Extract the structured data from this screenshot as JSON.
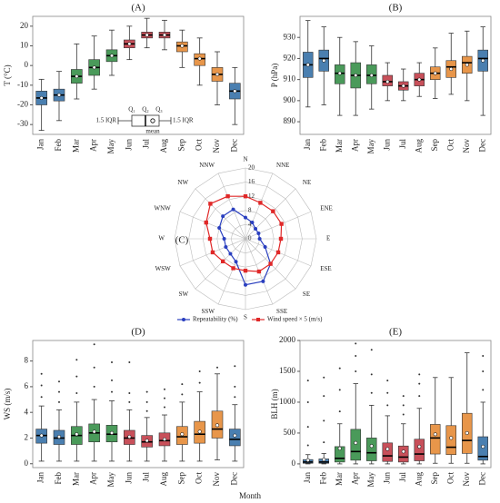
{
  "chart_data": [
    {
      "type": "box",
      "title": "(A)",
      "ylabel": "T (°C)",
      "categories": [
        "Jan",
        "Feb",
        "Mar",
        "Apr",
        "May",
        "Jun",
        "Jul",
        "Aug",
        "Sep",
        "Oct",
        "Nov",
        "Dec"
      ],
      "colors": [
        "#4a7fb0",
        "#4a7fb0",
        "#4a9a5a",
        "#4a9a5a",
        "#4a9a5a",
        "#c8505a",
        "#c8505a",
        "#c8505a",
        "#e8964a",
        "#e8964a",
        "#e8964a",
        "#4a7fb0"
      ],
      "ylim": [
        -35,
        25
      ],
      "yticks": [
        -30,
        -20,
        -10,
        0,
        10,
        20
      ],
      "boxes": [
        {
          "whislo": -33,
          "q1": -20,
          "med": -16.5,
          "q3": -13,
          "whishi": -7,
          "mean": -16.5
        },
        {
          "whislo": -28,
          "q1": -18,
          "med": -15,
          "q3": -12,
          "whishi": -3,
          "mean": -15
        },
        {
          "whislo": -17,
          "q1": -9,
          "med": -5.5,
          "q3": -2,
          "whishi": 11,
          "mean": -5.5
        },
        {
          "whislo": -12,
          "q1": -5,
          "med": -1,
          "q3": 3,
          "whishi": 15,
          "mean": -1
        },
        {
          "whislo": -5,
          "q1": 2,
          "med": 5,
          "q3": 8,
          "whishi": 18,
          "mean": 5
        },
        {
          "whislo": 3,
          "q1": 9,
          "med": 11,
          "q3": 13,
          "whishi": 20,
          "mean": 11
        },
        {
          "whislo": 9,
          "q1": 14,
          "med": 15.5,
          "q3": 17,
          "whishi": 24,
          "mean": 15.5
        },
        {
          "whislo": 8,
          "q1": 14,
          "med": 15.5,
          "q3": 17,
          "whishi": 23,
          "mean": 15.5
        },
        {
          "whislo": -1,
          "q1": 7,
          "med": 10,
          "q3": 12,
          "whishi": 18,
          "mean": 10
        },
        {
          "whislo": -10,
          "q1": 0,
          "med": 3.5,
          "q3": 6,
          "whishi": 14,
          "mean": 3.5
        },
        {
          "whislo": -20,
          "q1": -8,
          "med": -4.5,
          "q3": -1,
          "whishi": 7,
          "mean": -4.5
        },
        {
          "whislo": -30,
          "q1": -17,
          "med": -13,
          "q3": -9,
          "whishi": -1,
          "mean": -13
        }
      ],
      "legend_labels": {
        "q1": "Q₁",
        "q2": "Q₂",
        "q3": "Q₃",
        "iqr_low": "1.5 IQR",
        "iqr_high": "1.5 IQR",
        "mean": "mean"
      }
    },
    {
      "type": "box",
      "title": "(B)",
      "ylabel": "P (hPa)",
      "categories": [
        "Jan",
        "Feb",
        "Mar",
        "Apr",
        "May",
        "Jun",
        "Jul",
        "Aug",
        "Sep",
        "Oct",
        "Nov",
        "Dec"
      ],
      "colors": [
        "#4a7fb0",
        "#4a7fb0",
        "#4a9a5a",
        "#4a9a5a",
        "#4a9a5a",
        "#c8505a",
        "#c8505a",
        "#c8505a",
        "#e8964a",
        "#e8964a",
        "#e8964a",
        "#4a7fb0"
      ],
      "ylim": [
        884,
        940
      ],
      "yticks": [
        890,
        900,
        910,
        920,
        930
      ],
      "boxes": [
        {
          "whislo": 897,
          "q1": 911,
          "med": 917,
          "q3": 923,
          "whishi": 938,
          "mean": 917
        },
        {
          "whislo": 898,
          "q1": 914,
          "med": 920,
          "q3": 924,
          "whishi": 935,
          "mean": 919
        },
        {
          "whislo": 893,
          "q1": 908,
          "med": 913,
          "q3": 917,
          "whishi": 930,
          "mean": 913
        },
        {
          "whislo": 893,
          "q1": 906,
          "med": 912,
          "q3": 918,
          "whishi": 928,
          "mean": 912
        },
        {
          "whislo": 896,
          "q1": 908,
          "med": 912,
          "q3": 917,
          "whishi": 926,
          "mean": 912
        },
        {
          "whislo": 900,
          "q1": 907,
          "med": 909,
          "q3": 912,
          "whishi": 918,
          "mean": 909
        },
        {
          "whislo": 900,
          "q1": 905,
          "med": 907,
          "q3": 909,
          "whishi": 915,
          "mean": 907
        },
        {
          "whislo": 902,
          "q1": 907,
          "med": 910,
          "q3": 913,
          "whishi": 918,
          "mean": 910
        },
        {
          "whislo": 901,
          "q1": 910,
          "med": 913,
          "q3": 916,
          "whishi": 925,
          "mean": 913
        },
        {
          "whislo": 903,
          "q1": 911,
          "med": 916,
          "q3": 919,
          "whishi": 932,
          "mean": 915
        },
        {
          "whislo": 900,
          "q1": 913,
          "med": 918,
          "q3": 921,
          "whishi": 933,
          "mean": 917
        },
        {
          "whislo": 893,
          "q1": 914,
          "med": 920,
          "q3": 924,
          "whishi": 935,
          "mean": 919
        }
      ]
    },
    {
      "type": "radar",
      "title": "(C)",
      "categories": [
        "N",
        "NNE",
        "NE",
        "ENE",
        "E",
        "ESE",
        "SE",
        "SSE",
        "S",
        "SSW",
        "SW",
        "WSW",
        "W",
        "WNW",
        "NW",
        "NNW"
      ],
      "rlim": [
        0,
        20
      ],
      "rticks": [
        0,
        4,
        8,
        12,
        16,
        20
      ],
      "series": [
        {
          "name": "Repeatability (%)",
          "color": "#2a3fbf",
          "values": [
            6,
            5,
            4,
            4,
            4,
            6,
            10,
            13,
            13,
            7,
            6,
            6,
            6,
            8,
            9,
            9
          ]
        },
        {
          "name": "Wind speed × 5 (m/s)",
          "color": "#e02828",
          "values": [
            12,
            11,
            11,
            11,
            10,
            10,
            10,
            10,
            9,
            9,
            9,
            10,
            10,
            12,
            14,
            13
          ]
        }
      ]
    },
    {
      "type": "box",
      "title": "(D)",
      "ylabel": "WS (m/s)",
      "categories": [
        "Jan",
        "Feb",
        "Mar",
        "Apr",
        "May",
        "Jun",
        "Jul",
        "Aug",
        "Sep",
        "Oct",
        "Nov",
        "Dec"
      ],
      "colors": [
        "#4a7fb0",
        "#4a7fb0",
        "#4a9a5a",
        "#4a9a5a",
        "#4a9a5a",
        "#c8505a",
        "#c8505a",
        "#c8505a",
        "#e8964a",
        "#e8964a",
        "#e8964a",
        "#4a7fb0"
      ],
      "ylim": [
        -0.3,
        9.6
      ],
      "yticks": [
        0,
        2,
        4,
        6,
        8
      ],
      "boxes": [
        {
          "whislo": 0.2,
          "q1": 1.6,
          "med": 2.2,
          "q3": 2.7,
          "whishi": 4.5,
          "mean": 2.2,
          "outliers": [
            5.2,
            6.1,
            7
          ]
        },
        {
          "whislo": 0.2,
          "q1": 1.5,
          "med": 2,
          "q3": 2.6,
          "whishi": 4.2,
          "mean": 2.1,
          "outliers": [
            4.8,
            5.6,
            6.4
          ]
        },
        {
          "whislo": 0.2,
          "q1": 1.5,
          "med": 2.2,
          "q3": 2.9,
          "whishi": 4.8,
          "mean": 2.3,
          "outliers": [
            5.5,
            6.8,
            8.1
          ]
        },
        {
          "whislo": 0.2,
          "q1": 1.7,
          "med": 2.4,
          "q3": 3.1,
          "whishi": 5,
          "mean": 2.5,
          "outliers": [
            6,
            7.5,
            9.3
          ]
        },
        {
          "whislo": 0.2,
          "q1": 1.7,
          "med": 2.3,
          "q3": 3,
          "whishi": 4.9,
          "mean": 2.4,
          "outliers": [
            5.6,
            6.5,
            7.9
          ]
        },
        {
          "whislo": 0.2,
          "q1": 1.5,
          "med": 2,
          "q3": 2.6,
          "whishi": 4.2,
          "mean": 2.1,
          "outliers": [
            4.8,
            5.5,
            7.9
          ]
        },
        {
          "whislo": 0.2,
          "q1": 1.3,
          "med": 1.7,
          "q3": 2.2,
          "whishi": 3.6,
          "mean": 1.8,
          "outliers": [
            4.1,
            4.8,
            5.6
          ]
        },
        {
          "whislo": 0.2,
          "q1": 1.4,
          "med": 1.8,
          "q3": 2.4,
          "whishi": 3.8,
          "mean": 1.9,
          "outliers": [
            4.4,
            5.1,
            5.8
          ]
        },
        {
          "whislo": 0.2,
          "q1": 1.5,
          "med": 2.1,
          "q3": 2.9,
          "whishi": 4.8,
          "mean": 2.3,
          "outliers": [
            5.4,
            6.2
          ]
        },
        {
          "whislo": 0.2,
          "q1": 1.6,
          "med": 2.3,
          "q3": 3.3,
          "whishi": 5.6,
          "mean": 2.5,
          "outliers": [
            6.3,
            7.2
          ]
        },
        {
          "whislo": 0.3,
          "q1": 2,
          "med": 2.7,
          "q3": 4.1,
          "whishi": 7,
          "mean": 3,
          "outliers": [
            7.5
          ]
        },
        {
          "whislo": 0.2,
          "q1": 1.4,
          "med": 1.9,
          "q3": 2.7,
          "whishi": 4.6,
          "mean": 2.2,
          "outliers": [
            5.2,
            6,
            7.6
          ]
        }
      ]
    },
    {
      "type": "box",
      "title": "(E)",
      "ylabel": "BLH (m)",
      "categories": [
        "Jan",
        "Feb",
        "Mar",
        "Apr",
        "May",
        "Jun",
        "Jul",
        "Aug",
        "Sep",
        "Oct",
        "Nov",
        "Dec"
      ],
      "colors": [
        "#4a7fb0",
        "#4a7fb0",
        "#4a9a5a",
        "#4a9a5a",
        "#4a9a5a",
        "#c8505a",
        "#c8505a",
        "#c8505a",
        "#e8964a",
        "#e8964a",
        "#e8964a",
        "#4a7fb0"
      ],
      "ylim": [
        -60,
        2000
      ],
      "yticks": [
        0,
        500,
        1000,
        1500,
        2000
      ],
      "boxes": [
        {
          "whislo": 0,
          "q1": 10,
          "med": 30,
          "q3": 70,
          "whishi": 150,
          "mean": 60,
          "outliers": [
            300,
            600,
            1000,
            1350
          ]
        },
        {
          "whislo": 0,
          "q1": 10,
          "med": 30,
          "q3": 80,
          "whishi": 170,
          "mean": 70,
          "outliers": [
            350,
            700,
            1100,
            1400
          ]
        },
        {
          "whislo": 0,
          "q1": 30,
          "med": 90,
          "q3": 280,
          "whishi": 650,
          "mean": 250,
          "outliers": [
            850,
            1200,
            1550
          ]
        },
        {
          "whislo": 0,
          "q1": 60,
          "med": 200,
          "q3": 560,
          "whishi": 1300,
          "mean": 340,
          "outliers": [
            1500,
            1750,
            1950
          ]
        },
        {
          "whislo": 0,
          "q1": 50,
          "med": 180,
          "q3": 420,
          "whishi": 950,
          "mean": 290,
          "outliers": [
            1150,
            1450,
            1850
          ]
        },
        {
          "whislo": 0,
          "q1": 40,
          "med": 130,
          "q3": 340,
          "whishi": 780,
          "mean": 240,
          "outliers": [
            950,
            1150,
            1350
          ]
        },
        {
          "whislo": 0,
          "q1": 30,
          "med": 110,
          "q3": 290,
          "whishi": 650,
          "mean": 200,
          "outliers": [
            800,
            950,
            1100
          ]
        },
        {
          "whislo": 0,
          "q1": 50,
          "med": 160,
          "q3": 400,
          "whishi": 900,
          "mean": 280,
          "outliers": [
            1100,
            1300,
            1450
          ]
        },
        {
          "whislo": 10,
          "q1": 160,
          "med": 420,
          "q3": 640,
          "whishi": 1400,
          "mean": 480
        },
        {
          "whislo": 10,
          "q1": 150,
          "med": 270,
          "q3": 620,
          "whishi": 1400,
          "mean": 420
        },
        {
          "whislo": 10,
          "q1": 170,
          "med": 380,
          "q3": 820,
          "whishi": 1800,
          "mean": 500
        },
        {
          "whislo": 0,
          "q1": 60,
          "med": 120,
          "q3": 440,
          "whishi": 1000,
          "mean": 280,
          "outliers": [
            1200,
            1500,
            1750
          ]
        }
      ]
    }
  ],
  "xlabel": "Month"
}
